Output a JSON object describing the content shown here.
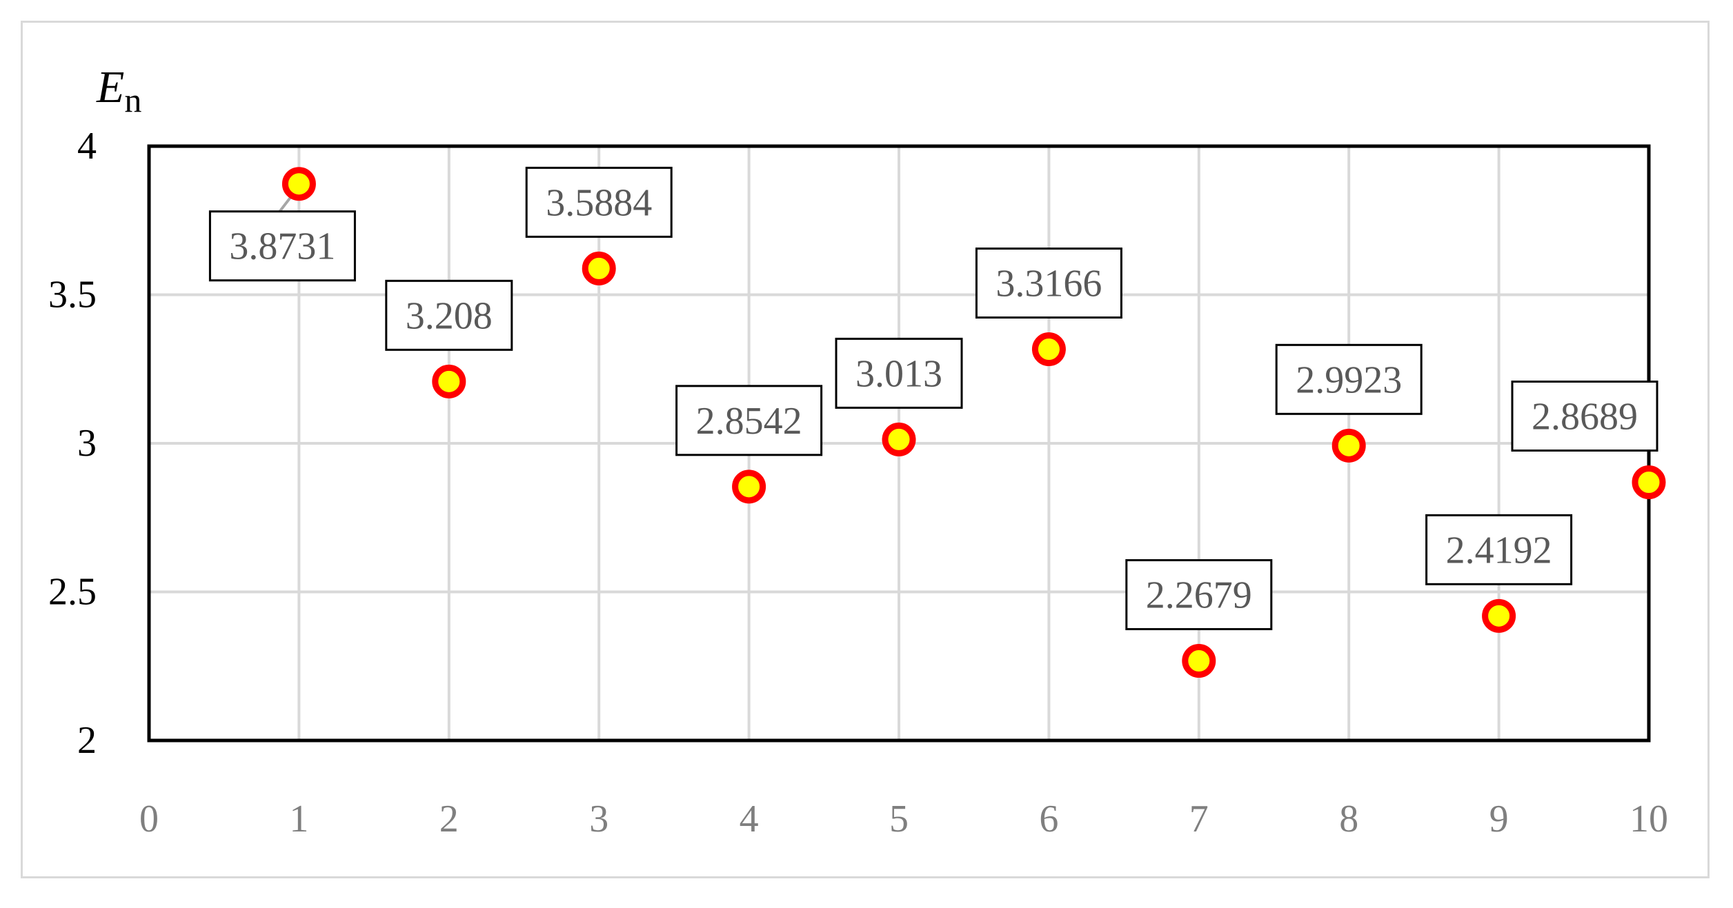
{
  "chart_data": {
    "type": "scatter",
    "ylabel_main": "E",
    "ylabel_sub": "n",
    "xlim": [
      0,
      10
    ],
    "ylim": [
      2,
      4
    ],
    "x_ticks": [
      "0",
      "1",
      "2",
      "3",
      "4",
      "5",
      "6",
      "7",
      "8",
      "9",
      "10"
    ],
    "y_ticks": [
      "2",
      "2.5",
      "3",
      "3.5",
      "4"
    ],
    "grid": true,
    "marker_fill": "#ffff00",
    "marker_edge": "#ff0000",
    "gridline_color": "#d9d9d9",
    "series": [
      {
        "x": [
          1,
          2,
          3,
          4,
          5,
          6,
          7,
          8,
          9,
          10
        ],
        "y": [
          3.8731,
          3.208,
          3.5884,
          2.8542,
          3.013,
          3.3166,
          2.2679,
          2.9923,
          2.4192,
          2.8689
        ],
        "labels": [
          "3.8731",
          "3.208",
          "3.5884",
          "2.8542",
          "3.013",
          "3.3166",
          "2.2679",
          "2.9923",
          "2.4192",
          "2.8689"
        ]
      }
    ]
  }
}
